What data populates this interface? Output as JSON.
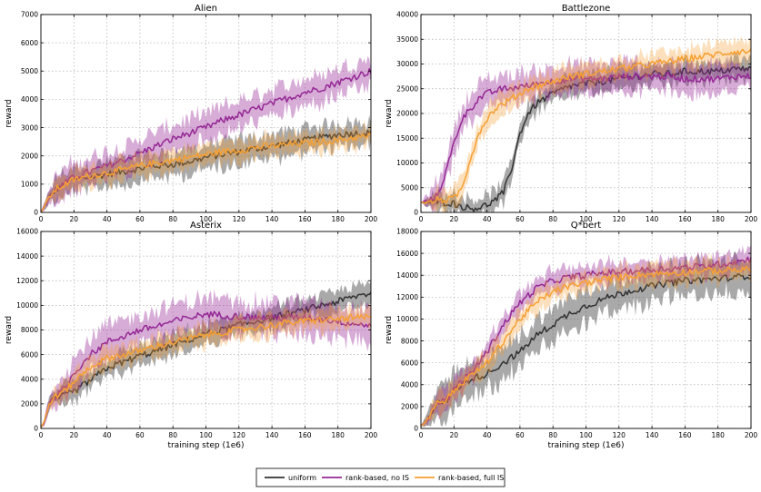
{
  "legend": {
    "entries": [
      {
        "label": "uniform",
        "color": "#333333"
      },
      {
        "label": "rank-based, no IS",
        "color": "#952895"
      },
      {
        "label": "rank-based, full IS",
        "color": "#f6a033"
      }
    ]
  },
  "chart_data": [
    {
      "type": "line",
      "title": "Alien",
      "xlabel": "",
      "ylabel": "reward",
      "xlim": [
        0,
        200
      ],
      "ylim": [
        0,
        7000
      ],
      "xticks": [
        0,
        20,
        40,
        60,
        80,
        100,
        120,
        140,
        160,
        180,
        200
      ],
      "yticks": [
        0,
        1000,
        2000,
        3000,
        4000,
        5000,
        6000,
        7000
      ],
      "grid": true,
      "x": [
        0,
        2,
        5,
        10,
        20,
        30,
        40,
        50,
        60,
        70,
        80,
        90,
        100,
        110,
        120,
        130,
        140,
        150,
        160,
        170,
        180,
        190,
        200
      ],
      "series": [
        {
          "name": "uniform",
          "values": [
            0,
            200,
            550,
            850,
            1150,
            1250,
            1350,
            1450,
            1550,
            1650,
            1700,
            1800,
            1950,
            2050,
            2150,
            2250,
            2350,
            2450,
            2550,
            2650,
            2750,
            2800,
            2800
          ]
        },
        {
          "name": "rank-based, no IS",
          "values": [
            0,
            200,
            550,
            850,
            1250,
            1450,
            1650,
            1850,
            2100,
            2350,
            2600,
            2800,
            3000,
            3250,
            3450,
            3650,
            3850,
            4050,
            4250,
            4400,
            4600,
            4800,
            5000
          ]
        },
        {
          "name": "rank-based, full IS",
          "values": [
            0,
            200,
            550,
            850,
            1150,
            1300,
            1400,
            1500,
            1650,
            1750,
            1850,
            1950,
            2050,
            2150,
            2200,
            2300,
            2350,
            2400,
            2450,
            2500,
            2550,
            2650,
            2700
          ]
        }
      ]
    },
    {
      "type": "line",
      "title": "Battlezone",
      "xlabel": "",
      "ylabel": "reward",
      "xlim": [
        0,
        200
      ],
      "ylim": [
        0,
        40000
      ],
      "xticks": [
        0,
        20,
        40,
        60,
        80,
        100,
        120,
        140,
        160,
        180,
        200
      ],
      "yticks": [
        0,
        5000,
        10000,
        15000,
        20000,
        25000,
        30000,
        35000,
        40000
      ],
      "grid": true,
      "x": [
        0,
        5,
        10,
        15,
        20,
        25,
        30,
        35,
        40,
        45,
        50,
        55,
        60,
        65,
        70,
        80,
        90,
        100,
        110,
        120,
        130,
        140,
        150,
        160,
        170,
        180,
        190,
        200
      ],
      "series": [
        {
          "name": "uniform",
          "values": [
            2000,
            2000,
            2200,
            2000,
            1800,
            1200,
            800,
            1000,
            1500,
            2500,
            4000,
            9000,
            16000,
            20000,
            22000,
            24000,
            25500,
            26000,
            26500,
            27000,
            27500,
            28000,
            28000,
            28500,
            28500,
            28500,
            29000,
            29000
          ]
        },
        {
          "name": "rank-based, no IS",
          "values": [
            2000,
            2500,
            3500,
            8000,
            14000,
            19000,
            21000,
            23000,
            24000,
            24500,
            25000,
            25000,
            25500,
            25500,
            26000,
            26500,
            27000,
            27000,
            27000,
            27500,
            27500,
            27500,
            27500,
            27000,
            27000,
            27000,
            27500,
            27500
          ]
        },
        {
          "name": "rank-based, full IS",
          "values": [
            2000,
            2000,
            2500,
            2500,
            2800,
            5000,
            11000,
            16000,
            19000,
            21000,
            22000,
            23000,
            24000,
            25000,
            25500,
            26500,
            27500,
            28000,
            28500,
            29000,
            29500,
            30000,
            30500,
            31000,
            31500,
            32000,
            32500,
            32500
          ]
        }
      ]
    },
    {
      "type": "line",
      "title": "Asterix",
      "xlabel": "training step (1e6)",
      "ylabel": "reward",
      "xlim": [
        0,
        200
      ],
      "ylim": [
        0,
        16000
      ],
      "xticks": [
        0,
        20,
        40,
        60,
        80,
        100,
        120,
        140,
        160,
        180,
        200
      ],
      "yticks": [
        0,
        2000,
        4000,
        6000,
        8000,
        10000,
        12000,
        14000,
        16000
      ],
      "grid": true,
      "x": [
        0,
        2,
        5,
        8,
        10,
        15,
        20,
        30,
        40,
        50,
        60,
        70,
        80,
        90,
        100,
        110,
        120,
        130,
        140,
        150,
        160,
        170,
        180,
        190,
        200
      ],
      "series": [
        {
          "name": "uniform",
          "values": [
            100,
            500,
            2000,
            2400,
            2500,
            2700,
            3000,
            3900,
            4900,
            5400,
            5900,
            6300,
            6800,
            7200,
            7700,
            8000,
            8400,
            8700,
            9000,
            9300,
            9600,
            10000,
            10300,
            10700,
            11000
          ]
        },
        {
          "name": "rank-based, no IS",
          "values": [
            100,
            500,
            2000,
            2500,
            2700,
            3300,
            4500,
            6000,
            7000,
            7500,
            8000,
            8300,
            8700,
            9000,
            9300,
            9200,
            9100,
            9000,
            9000,
            9000,
            9000,
            8900,
            8700,
            8500,
            8400
          ]
        },
        {
          "name": "rank-based, full IS",
          "values": [
            100,
            500,
            2000,
            2500,
            2700,
            3100,
            3800,
            5000,
            5700,
            6000,
            6300,
            6700,
            7000,
            7300,
            7600,
            7800,
            8000,
            8200,
            8400,
            8600,
            8700,
            8800,
            8900,
            9000,
            9000
          ]
        }
      ]
    },
    {
      "type": "line",
      "title": "Q*bert",
      "xlabel": "training step (1e6)",
      "ylabel": "reward",
      "xlim": [
        0,
        200
      ],
      "ylim": [
        0,
        18000
      ],
      "xticks": [
        0,
        20,
        40,
        60,
        80,
        100,
        120,
        140,
        160,
        180,
        200
      ],
      "yticks": [
        0,
        2000,
        4000,
        6000,
        8000,
        10000,
        12000,
        14000,
        16000,
        18000
      ],
      "grid": true,
      "x": [
        0,
        2,
        5,
        10,
        15,
        20,
        30,
        40,
        50,
        60,
        70,
        80,
        90,
        100,
        110,
        120,
        130,
        140,
        150,
        160,
        170,
        180,
        190,
        200
      ],
      "series": [
        {
          "name": "uniform",
          "values": [
            200,
            500,
            1000,
            2500,
            2500,
            3500,
            4500,
            5000,
            6000,
            7000,
            8500,
            9500,
            10500,
            11200,
            11800,
            12300,
            12700,
            13000,
            13300,
            13500,
            13600,
            13700,
            13800,
            14000
          ]
        },
        {
          "name": "rank-based, no IS",
          "values": [
            200,
            500,
            1000,
            2500,
            2500,
            3600,
            5000,
            7000,
            9500,
            11500,
            12800,
            13500,
            13800,
            14000,
            14200,
            14300,
            14400,
            14500,
            14600,
            14700,
            14800,
            15000,
            15200,
            15500
          ]
        },
        {
          "name": "rank-based, full IS",
          "values": [
            200,
            500,
            1000,
            2500,
            2500,
            3500,
            4800,
            6000,
            8000,
            10000,
            11500,
            12500,
            13000,
            13300,
            13600,
            13800,
            14000,
            14100,
            14200,
            14300,
            14400,
            14400,
            14500,
            14500
          ]
        }
      ]
    }
  ]
}
